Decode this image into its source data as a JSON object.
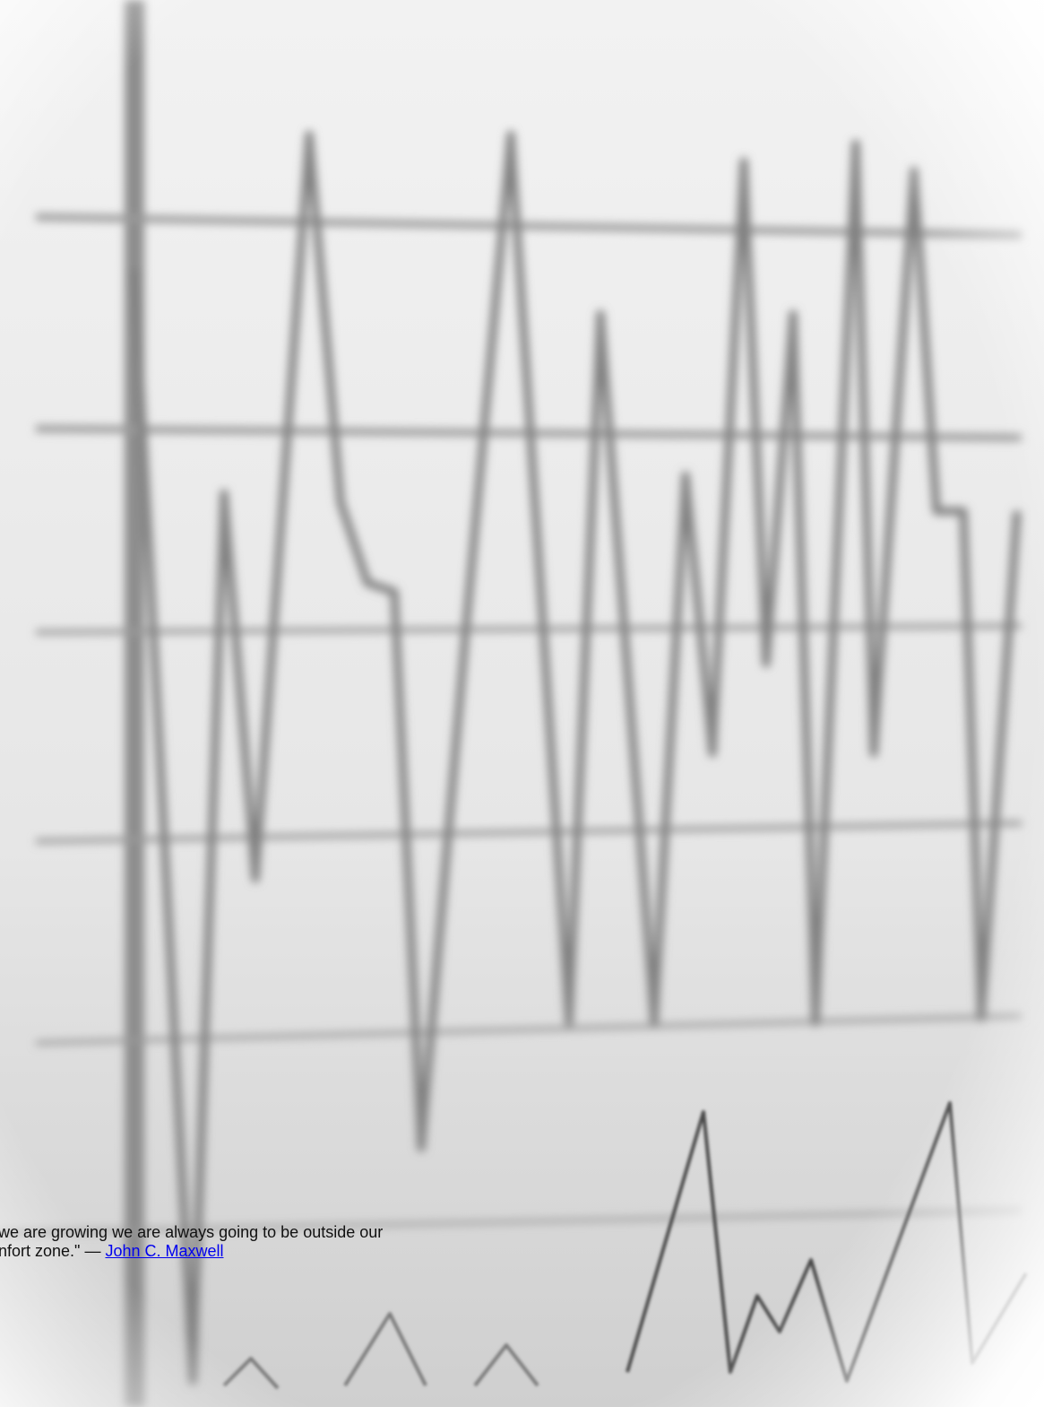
{
  "quote": {
    "line1": "we are growing we are always going to be outside our",
    "line2": "nfort zone.\" — ",
    "author": "John C. Maxwell"
  }
}
